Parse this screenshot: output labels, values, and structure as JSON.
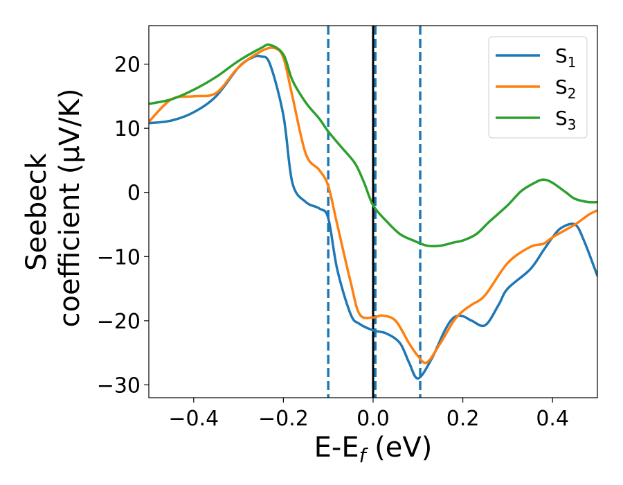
{
  "chart_data": {
    "type": "line",
    "xlabel": {
      "main": "E-E",
      "sub": "f",
      "unit": " (eV)"
    },
    "ylabel": {
      "line1": "Seebeck",
      "line2": "coefficient  (μV/K)"
    },
    "xlim": [
      -0.5,
      0.5
    ],
    "ylim": [
      -32,
      26
    ],
    "xticks": [
      -0.4,
      -0.2,
      0.0,
      0.2,
      0.4
    ],
    "xtick_labels": [
      "−0.4",
      "−0.2",
      "0.0",
      "0.2",
      "0.4"
    ],
    "yticks": [
      -30,
      -20,
      -10,
      0,
      10,
      20
    ],
    "ytick_labels": [
      "−30",
      "−20",
      "−10",
      "0",
      "10",
      "20"
    ],
    "grid": false,
    "legend_position": "top-right",
    "vlines": [
      {
        "x": -0.1,
        "style": "dashed",
        "color": "#1f77b4"
      },
      {
        "x": 0.0,
        "style": "solid",
        "color": "#000000"
      },
      {
        "x": 0.005,
        "style": "dashed",
        "color": "#1f77b4"
      },
      {
        "x": 0.105,
        "style": "dashed",
        "color": "#1f77b4"
      }
    ],
    "series": [
      {
        "name": "S",
        "sub": "1",
        "color": "#1f77b4",
        "x": [
          -0.5,
          -0.45,
          -0.4,
          -0.35,
          -0.3,
          -0.27,
          -0.25,
          -0.23,
          -0.2,
          -0.18,
          -0.15,
          -0.12,
          -0.1,
          -0.08,
          -0.05,
          -0.03,
          0.0,
          0.03,
          0.06,
          0.08,
          0.1,
          0.13,
          0.16,
          0.18,
          0.2,
          0.22,
          0.25,
          0.28,
          0.3,
          0.35,
          0.38,
          0.4,
          0.42,
          0.45,
          0.47,
          0.5
        ],
        "y": [
          10.8,
          11.2,
          12.5,
          15.0,
          19.5,
          21.0,
          21.2,
          20.0,
          12.0,
          1.5,
          -1.5,
          -2.5,
          -4.0,
          -12.0,
          -19.0,
          -20.5,
          -21.5,
          -22.0,
          -23.5,
          -26.5,
          -29.0,
          -26.0,
          -21.5,
          -19.5,
          -19.3,
          -20.0,
          -20.7,
          -17.5,
          -15.0,
          -12.0,
          -9.0,
          -7.0,
          -5.5,
          -5.0,
          -7.5,
          -13.0
        ]
      },
      {
        "name": "S",
        "sub": "2",
        "color": "#ff7f0e",
        "x": [
          -0.5,
          -0.45,
          -0.4,
          -0.35,
          -0.3,
          -0.25,
          -0.22,
          -0.2,
          -0.18,
          -0.15,
          -0.12,
          -0.1,
          -0.08,
          -0.05,
          -0.03,
          0.0,
          0.02,
          0.05,
          0.08,
          0.1,
          0.12,
          0.15,
          0.18,
          0.2,
          0.22,
          0.25,
          0.3,
          0.35,
          0.38,
          0.4,
          0.45,
          0.48,
          0.5
        ],
        "y": [
          11.0,
          14.5,
          15.0,
          15.5,
          19.5,
          22.0,
          22.5,
          21.0,
          15.0,
          6.0,
          3.5,
          1.0,
          -5.0,
          -14.0,
          -19.0,
          -19.5,
          -19.2,
          -20.0,
          -23.5,
          -25.5,
          -26.5,
          -23.5,
          -20.0,
          -18.5,
          -17.5,
          -16.0,
          -11.0,
          -8.5,
          -8.0,
          -7.0,
          -5.0,
          -3.5,
          -2.8
        ]
      },
      {
        "name": "S",
        "sub": "3",
        "color": "#2ca02c",
        "x": [
          -0.5,
          -0.45,
          -0.4,
          -0.35,
          -0.3,
          -0.25,
          -0.23,
          -0.2,
          -0.18,
          -0.15,
          -0.12,
          -0.1,
          -0.07,
          -0.04,
          -0.02,
          0.0,
          0.03,
          0.06,
          0.09,
          0.12,
          0.15,
          0.18,
          0.2,
          0.23,
          0.26,
          0.3,
          0.33,
          0.36,
          0.38,
          0.4,
          0.43,
          0.45,
          0.48,
          0.5
        ],
        "y": [
          13.8,
          14.5,
          16.0,
          18.0,
          20.5,
          22.5,
          23.0,
          21.5,
          17.5,
          14.0,
          11.5,
          9.5,
          7.0,
          4.5,
          1.5,
          -2.0,
          -4.5,
          -6.5,
          -7.5,
          -8.3,
          -8.3,
          -7.8,
          -7.5,
          -6.5,
          -4.5,
          -2.0,
          0.2,
          1.5,
          2.0,
          1.5,
          0.0,
          -1.0,
          -1.5,
          -1.5
        ]
      }
    ]
  }
}
